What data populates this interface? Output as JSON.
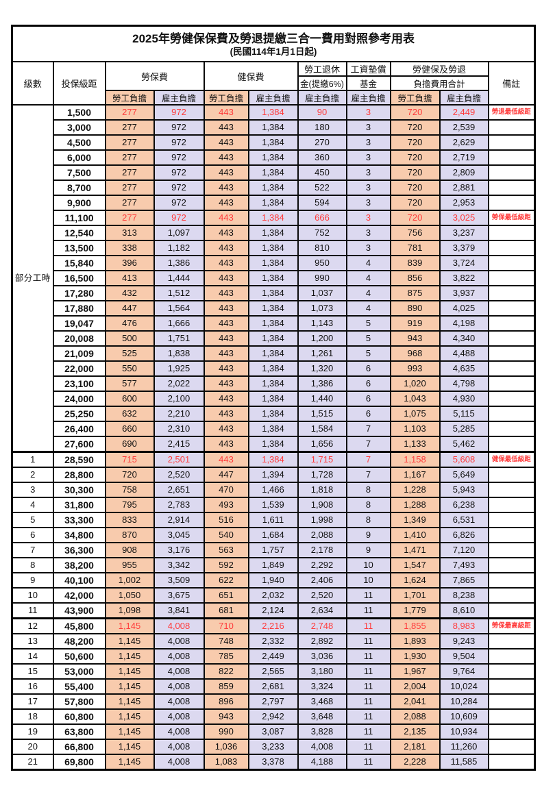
{
  "title": "2025年勞健保保費及勞退提繳三合一費用對照參考用表",
  "subtitle": "(民國114年1月1日起)",
  "colors": {
    "employee_bg": "#F8CBAD",
    "employer_bg": "#DCD9F0",
    "highlight_text": "#FF3B3B"
  },
  "columns": {
    "level": "級數",
    "salary": "投保級距",
    "labor_insurance": "勞保費",
    "health_insurance": "健保費",
    "pension_l1": "勞工退休",
    "pension_l2": "金(提繳6%)",
    "wage_fund_l1": "工資墊償",
    "wage_fund_l2": "基金",
    "total_l1": "勞健保及勞退",
    "total_l2": "負擔費用合計",
    "remark": "備註",
    "employee_share": "勞工負擔",
    "employer_share": "雇主負擔"
  },
  "part_time_label": "部分工時",
  "rows": [
    {
      "lvl": "",
      "salary": "1,500",
      "li_w": "277",
      "li_e": "972",
      "hi_w": "443",
      "hi_e": "1,384",
      "lp_e": "90",
      "wf_e": "3",
      "tot_w": "720",
      "tot_e": "2,449",
      "note": "勞退最低級距",
      "hl": true
    },
    {
      "lvl": "",
      "salary": "3,000",
      "li_w": "277",
      "li_e": "972",
      "hi_w": "443",
      "hi_e": "1,384",
      "lp_e": "180",
      "wf_e": "3",
      "tot_w": "720",
      "tot_e": "2,539",
      "note": ""
    },
    {
      "lvl": "",
      "salary": "4,500",
      "li_w": "277",
      "li_e": "972",
      "hi_w": "443",
      "hi_e": "1,384",
      "lp_e": "270",
      "wf_e": "3",
      "tot_w": "720",
      "tot_e": "2,629",
      "note": ""
    },
    {
      "lvl": "",
      "salary": "6,000",
      "li_w": "277",
      "li_e": "972",
      "hi_w": "443",
      "hi_e": "1,384",
      "lp_e": "360",
      "wf_e": "3",
      "tot_w": "720",
      "tot_e": "2,719",
      "note": ""
    },
    {
      "lvl": "",
      "salary": "7,500",
      "li_w": "277",
      "li_e": "972",
      "hi_w": "443",
      "hi_e": "1,384",
      "lp_e": "450",
      "wf_e": "3",
      "tot_w": "720",
      "tot_e": "2,809",
      "note": ""
    },
    {
      "lvl": "",
      "salary": "8,700",
      "li_w": "277",
      "li_e": "972",
      "hi_w": "443",
      "hi_e": "1,384",
      "lp_e": "522",
      "wf_e": "3",
      "tot_w": "720",
      "tot_e": "2,881",
      "note": ""
    },
    {
      "lvl": "",
      "salary": "9,900",
      "li_w": "277",
      "li_e": "972",
      "hi_w": "443",
      "hi_e": "1,384",
      "lp_e": "594",
      "wf_e": "3",
      "tot_w": "720",
      "tot_e": "2,953",
      "note": ""
    },
    {
      "lvl": "",
      "salary": "11,100",
      "li_w": "277",
      "li_e": "972",
      "hi_w": "443",
      "hi_e": "1,384",
      "lp_e": "666",
      "wf_e": "3",
      "tot_w": "720",
      "tot_e": "3,025",
      "note": "勞保最低級距",
      "hl": true
    },
    {
      "lvl": "",
      "salary": "12,540",
      "li_w": "313",
      "li_e": "1,097",
      "hi_w": "443",
      "hi_e": "1,384",
      "lp_e": "752",
      "wf_e": "3",
      "tot_w": "756",
      "tot_e": "3,237",
      "note": ""
    },
    {
      "lvl": "",
      "salary": "13,500",
      "li_w": "338",
      "li_e": "1,182",
      "hi_w": "443",
      "hi_e": "1,384",
      "lp_e": "810",
      "wf_e": "3",
      "tot_w": "781",
      "tot_e": "3,379",
      "note": ""
    },
    {
      "lvl": "",
      "salary": "15,840",
      "li_w": "396",
      "li_e": "1,386",
      "hi_w": "443",
      "hi_e": "1,384",
      "lp_e": "950",
      "wf_e": "4",
      "tot_w": "839",
      "tot_e": "3,724",
      "note": ""
    },
    {
      "lvl": "",
      "salary": "16,500",
      "li_w": "413",
      "li_e": "1,444",
      "hi_w": "443",
      "hi_e": "1,384",
      "lp_e": "990",
      "wf_e": "4",
      "tot_w": "856",
      "tot_e": "3,822",
      "note": ""
    },
    {
      "lvl": "",
      "salary": "17,280",
      "li_w": "432",
      "li_e": "1,512",
      "hi_w": "443",
      "hi_e": "1,384",
      "lp_e": "1,037",
      "wf_e": "4",
      "tot_w": "875",
      "tot_e": "3,937",
      "note": ""
    },
    {
      "lvl": "",
      "salary": "17,880",
      "li_w": "447",
      "li_e": "1,564",
      "hi_w": "443",
      "hi_e": "1,384",
      "lp_e": "1,073",
      "wf_e": "4",
      "tot_w": "890",
      "tot_e": "4,025",
      "note": ""
    },
    {
      "lvl": "",
      "salary": "19,047",
      "li_w": "476",
      "li_e": "1,666",
      "hi_w": "443",
      "hi_e": "1,384",
      "lp_e": "1,143",
      "wf_e": "5",
      "tot_w": "919",
      "tot_e": "4,198",
      "note": ""
    },
    {
      "lvl": "",
      "salary": "20,008",
      "li_w": "500",
      "li_e": "1,751",
      "hi_w": "443",
      "hi_e": "1,384",
      "lp_e": "1,200",
      "wf_e": "5",
      "tot_w": "943",
      "tot_e": "4,340",
      "note": ""
    },
    {
      "lvl": "",
      "salary": "21,009",
      "li_w": "525",
      "li_e": "1,838",
      "hi_w": "443",
      "hi_e": "1,384",
      "lp_e": "1,261",
      "wf_e": "5",
      "tot_w": "968",
      "tot_e": "4,488",
      "note": ""
    },
    {
      "lvl": "",
      "salary": "22,000",
      "li_w": "550",
      "li_e": "1,925",
      "hi_w": "443",
      "hi_e": "1,384",
      "lp_e": "1,320",
      "wf_e": "6",
      "tot_w": "993",
      "tot_e": "4,635",
      "note": ""
    },
    {
      "lvl": "",
      "salary": "23,100",
      "li_w": "577",
      "li_e": "2,022",
      "hi_w": "443",
      "hi_e": "1,384",
      "lp_e": "1,386",
      "wf_e": "6",
      "tot_w": "1,020",
      "tot_e": "4,798",
      "note": ""
    },
    {
      "lvl": "",
      "salary": "24,000",
      "li_w": "600",
      "li_e": "2,100",
      "hi_w": "443",
      "hi_e": "1,384",
      "lp_e": "1,440",
      "wf_e": "6",
      "tot_w": "1,043",
      "tot_e": "4,930",
      "note": ""
    },
    {
      "lvl": "",
      "salary": "25,250",
      "li_w": "632",
      "li_e": "2,210",
      "hi_w": "443",
      "hi_e": "1,384",
      "lp_e": "1,515",
      "wf_e": "6",
      "tot_w": "1,075",
      "tot_e": "5,115",
      "note": ""
    },
    {
      "lvl": "",
      "salary": "26,400",
      "li_w": "660",
      "li_e": "2,310",
      "hi_w": "443",
      "hi_e": "1,384",
      "lp_e": "1,584",
      "wf_e": "7",
      "tot_w": "1,103",
      "tot_e": "5,285",
      "note": ""
    },
    {
      "lvl": "",
      "salary": "27,600",
      "li_w": "690",
      "li_e": "2,415",
      "hi_w": "443",
      "hi_e": "1,384",
      "lp_e": "1,656",
      "wf_e": "7",
      "tot_w": "1,133",
      "tot_e": "5,462",
      "note": ""
    },
    {
      "lvl": "1",
      "salary": "28,590",
      "li_w": "715",
      "li_e": "2,501",
      "hi_w": "443",
      "hi_e": "1,384",
      "lp_e": "1,715",
      "wf_e": "7",
      "tot_w": "1,158",
      "tot_e": "5,608",
      "note": "健保最低級距",
      "hl": true,
      "thick": true
    },
    {
      "lvl": "2",
      "salary": "28,800",
      "li_w": "720",
      "li_e": "2,520",
      "hi_w": "447",
      "hi_e": "1,394",
      "lp_e": "1,728",
      "wf_e": "7",
      "tot_w": "1,167",
      "tot_e": "5,649",
      "note": ""
    },
    {
      "lvl": "3",
      "salary": "30,300",
      "li_w": "758",
      "li_e": "2,651",
      "hi_w": "470",
      "hi_e": "1,466",
      "lp_e": "1,818",
      "wf_e": "8",
      "tot_w": "1,228",
      "tot_e": "5,943",
      "note": ""
    },
    {
      "lvl": "4",
      "salary": "31,800",
      "li_w": "795",
      "li_e": "2,783",
      "hi_w": "493",
      "hi_e": "1,539",
      "lp_e": "1,908",
      "wf_e": "8",
      "tot_w": "1,288",
      "tot_e": "6,238",
      "note": ""
    },
    {
      "lvl": "5",
      "salary": "33,300",
      "li_w": "833",
      "li_e": "2,914",
      "hi_w": "516",
      "hi_e": "1,611",
      "lp_e": "1,998",
      "wf_e": "8",
      "tot_w": "1,349",
      "tot_e": "6,531",
      "note": ""
    },
    {
      "lvl": "6",
      "salary": "34,800",
      "li_w": "870",
      "li_e": "3,045",
      "hi_w": "540",
      "hi_e": "1,684",
      "lp_e": "2,088",
      "wf_e": "9",
      "tot_w": "1,410",
      "tot_e": "6,826",
      "note": ""
    },
    {
      "lvl": "7",
      "salary": "36,300",
      "li_w": "908",
      "li_e": "3,176",
      "hi_w": "563",
      "hi_e": "1,757",
      "lp_e": "2,178",
      "wf_e": "9",
      "tot_w": "1,471",
      "tot_e": "7,120",
      "note": ""
    },
    {
      "lvl": "8",
      "salary": "38,200",
      "li_w": "955",
      "li_e": "3,342",
      "hi_w": "592",
      "hi_e": "1,849",
      "lp_e": "2,292",
      "wf_e": "10",
      "tot_w": "1,547",
      "tot_e": "7,493",
      "note": ""
    },
    {
      "lvl": "9",
      "salary": "40,100",
      "li_w": "1,002",
      "li_e": "3,509",
      "hi_w": "622",
      "hi_e": "1,940",
      "lp_e": "2,406",
      "wf_e": "10",
      "tot_w": "1,624",
      "tot_e": "7,865",
      "note": ""
    },
    {
      "lvl": "10",
      "salary": "42,000",
      "li_w": "1,050",
      "li_e": "3,675",
      "hi_w": "651",
      "hi_e": "2,032",
      "lp_e": "2,520",
      "wf_e": "11",
      "tot_w": "1,701",
      "tot_e": "8,238",
      "note": ""
    },
    {
      "lvl": "11",
      "salary": "43,900",
      "li_w": "1,098",
      "li_e": "3,841",
      "hi_w": "681",
      "hi_e": "2,124",
      "lp_e": "2,634",
      "wf_e": "11",
      "tot_w": "1,779",
      "tot_e": "8,610",
      "note": ""
    },
    {
      "lvl": "12",
      "salary": "45,800",
      "li_w": "1,145",
      "li_e": "4,008",
      "hi_w": "710",
      "hi_e": "2,216",
      "lp_e": "2,748",
      "wf_e": "11",
      "tot_w": "1,855",
      "tot_e": "8,983",
      "note": "勞保最高級距",
      "hl": true,
      "thick": true
    },
    {
      "lvl": "13",
      "salary": "48,200",
      "li_w": "1,145",
      "li_e": "4,008",
      "hi_w": "748",
      "hi_e": "2,332",
      "lp_e": "2,892",
      "wf_e": "11",
      "tot_w": "1,893",
      "tot_e": "9,243",
      "note": ""
    },
    {
      "lvl": "14",
      "salary": "50,600",
      "li_w": "1,145",
      "li_e": "4,008",
      "hi_w": "785",
      "hi_e": "2,449",
      "lp_e": "3,036",
      "wf_e": "11",
      "tot_w": "1,930",
      "tot_e": "9,504",
      "note": ""
    },
    {
      "lvl": "15",
      "salary": "53,000",
      "li_w": "1,145",
      "li_e": "4,008",
      "hi_w": "822",
      "hi_e": "2,565",
      "lp_e": "3,180",
      "wf_e": "11",
      "tot_w": "1,967",
      "tot_e": "9,764",
      "note": ""
    },
    {
      "lvl": "16",
      "salary": "55,400",
      "li_w": "1,145",
      "li_e": "4,008",
      "hi_w": "859",
      "hi_e": "2,681",
      "lp_e": "3,324",
      "wf_e": "11",
      "tot_w": "2,004",
      "tot_e": "10,024",
      "note": ""
    },
    {
      "lvl": "17",
      "salary": "57,800",
      "li_w": "1,145",
      "li_e": "4,008",
      "hi_w": "896",
      "hi_e": "2,797",
      "lp_e": "3,468",
      "wf_e": "11",
      "tot_w": "2,041",
      "tot_e": "10,284",
      "note": ""
    },
    {
      "lvl": "18",
      "salary": "60,800",
      "li_w": "1,145",
      "li_e": "4,008",
      "hi_w": "943",
      "hi_e": "2,942",
      "lp_e": "3,648",
      "wf_e": "11",
      "tot_w": "2,088",
      "tot_e": "10,609",
      "note": ""
    },
    {
      "lvl": "19",
      "salary": "63,800",
      "li_w": "1,145",
      "li_e": "4,008",
      "hi_w": "990",
      "hi_e": "3,087",
      "lp_e": "3,828",
      "wf_e": "11",
      "tot_w": "2,135",
      "tot_e": "10,934",
      "note": ""
    },
    {
      "lvl": "20",
      "salary": "66,800",
      "li_w": "1,145",
      "li_e": "4,008",
      "hi_w": "1,036",
      "hi_e": "3,233",
      "lp_e": "4,008",
      "wf_e": "11",
      "tot_w": "2,181",
      "tot_e": "11,260",
      "note": ""
    },
    {
      "lvl": "21",
      "salary": "69,800",
      "li_w": "1,145",
      "li_e": "4,008",
      "hi_w": "1,083",
      "hi_e": "3,378",
      "lp_e": "4,188",
      "wf_e": "11",
      "tot_w": "2,228",
      "tot_e": "11,585",
      "note": ""
    }
  ]
}
